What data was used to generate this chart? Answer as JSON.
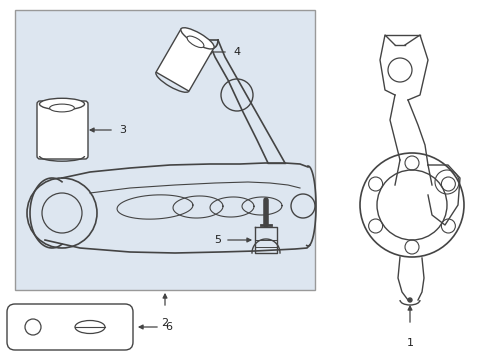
{
  "bg_color": "#ffffff",
  "box_bg": "#dde6f0",
  "line_color": "#444444",
  "arrow_color": "#444444",
  "label_color": "#222222"
}
